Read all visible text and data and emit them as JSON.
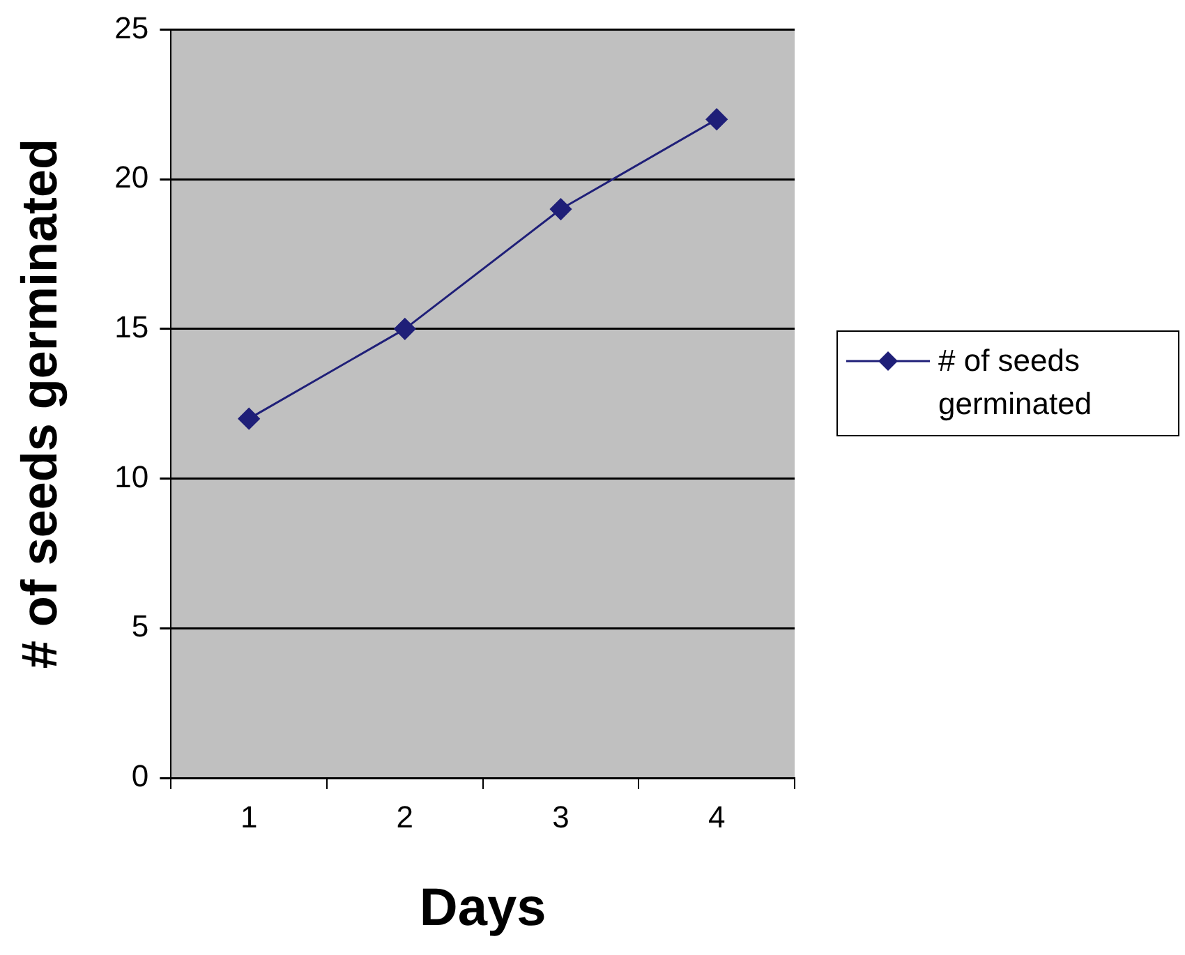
{
  "chart_data": {
    "type": "line",
    "xlabel": "Days",
    "ylabel": "# of seeds germinated",
    "categories": [
      "1",
      "2",
      "3",
      "4"
    ],
    "series": [
      {
        "name": "# of seeds germinated",
        "color": "#1f1f78",
        "values": [
          12,
          15,
          19,
          22
        ]
      }
    ],
    "ylim": [
      0,
      25
    ],
    "yticks": [
      0,
      5,
      10,
      15,
      20,
      25
    ],
    "grid": "y",
    "legend": "right",
    "marker": "diamond",
    "line_style": "solid"
  }
}
